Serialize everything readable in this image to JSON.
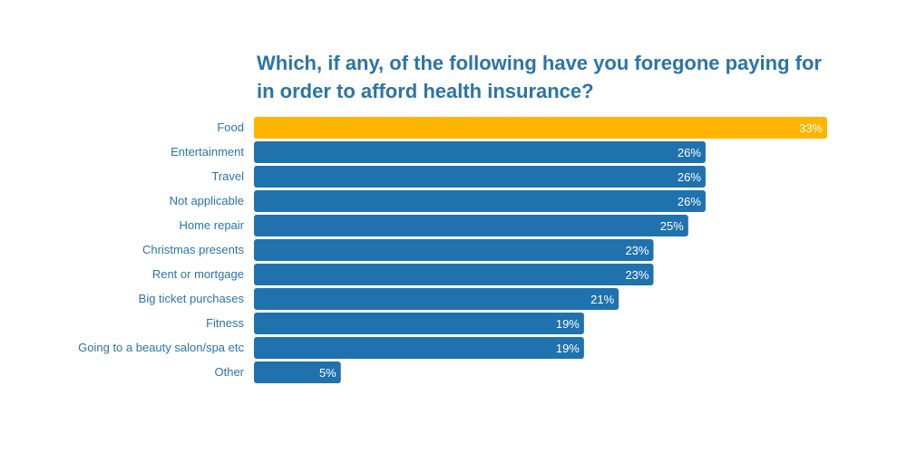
{
  "title_lines": [
    "Which, if any, of the following have you foregone paying for",
    "in order to afford health insurance?"
  ],
  "colors": {
    "highlight": "#ffb400",
    "bar": "#1f72ad",
    "text": "#2b74a9"
  },
  "chart_data": {
    "type": "bar",
    "orientation": "horizontal",
    "title": "Which, if any, of the following have you foregone paying for in order to afford health insurance?",
    "categories": [
      "Food",
      "Entertainment",
      "Travel",
      "Not applicable",
      "Home repair",
      "Christmas presents",
      "Rent or mortgage",
      "Big ticket purchases",
      "Fitness",
      "Going to a beauty salon/spa etc",
      "Other"
    ],
    "values": [
      33,
      26,
      26,
      26,
      25,
      23,
      23,
      21,
      19,
      19,
      5
    ],
    "data_labels": [
      "33%",
      "26%",
      "26%",
      "26%",
      "25%",
      "23%",
      "23%",
      "21%",
      "19%",
      "19%",
      "5%"
    ],
    "unit": "%",
    "highlight_index": 0,
    "xlim": [
      0,
      33
    ],
    "grid": false,
    "legend": "none"
  }
}
